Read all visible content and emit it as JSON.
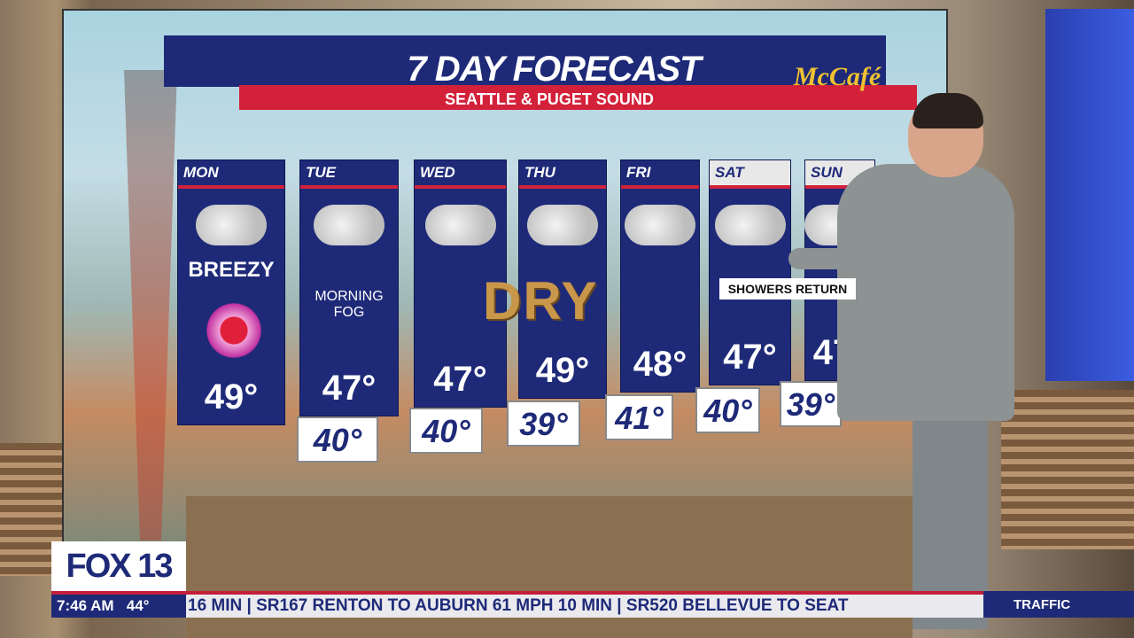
{
  "graphic": {
    "title": "7 DAY FORECAST",
    "subtitle": "SEATTLE & PUGET SOUND",
    "sponsor": "McCafé",
    "center_label": "DRY",
    "callout": "SHOWERS RETURN",
    "days": [
      {
        "day": "MON",
        "high": "49°",
        "low": null,
        "note": "BREEZY",
        "icon": "cloudy-icon",
        "extra_icon": "heart-icon"
      },
      {
        "day": "TUE",
        "high": "47°",
        "low": "40°",
        "note": "MORNING FOG",
        "icon": "cloudy-icon"
      },
      {
        "day": "WED",
        "high": "47°",
        "low": "40°",
        "icon": "cloudy-icon"
      },
      {
        "day": "THU",
        "high": "49°",
        "low": "39°",
        "icon": "cloudy-icon"
      },
      {
        "day": "FRI",
        "high": "48°",
        "low": "41°",
        "icon": "cloudy-icon"
      },
      {
        "day": "SAT",
        "high": "47°",
        "low": "40°",
        "icon": "showers-icon"
      },
      {
        "day": "SUN",
        "high": "47°",
        "low": "39°",
        "icon": "partly-sunny-showers-icon"
      }
    ],
    "colors": {
      "navy": "#1e2a78",
      "red": "#d3213a",
      "gold": "#c9974a"
    }
  },
  "lower_third": {
    "station_logo": "FOX 13",
    "time": "7:46 AM",
    "temperature": "44°",
    "crawl": "16 MIN | SR167 RENTON TO AUBURN 61 MPH 10 MIN | SR520 BELLEVUE TO SEAT",
    "segment": "TRAFFIC"
  }
}
